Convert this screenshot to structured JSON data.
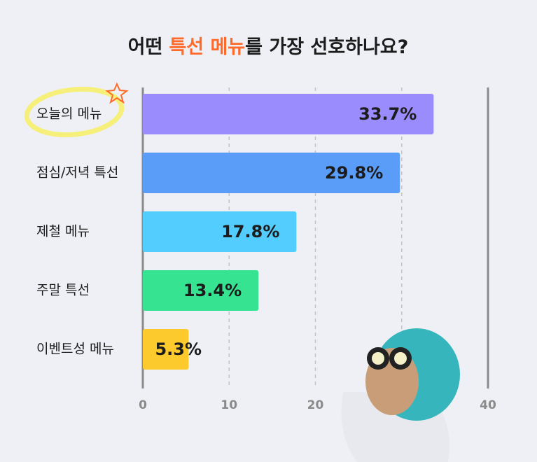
{
  "chart_data": {
    "type": "hbar",
    "title_parts": [
      "어떤",
      "특선 메뉴",
      "를 가장 선호하나요?"
    ],
    "categories": [
      "오늘의 메뉴",
      "점심/저녁 특선",
      "제철 메뉴",
      "주말 특선",
      "이벤트성 메뉴"
    ],
    "values": [
      33.7,
      29.8,
      17.8,
      13.4,
      5.3
    ],
    "value_labels": [
      "33.7%",
      "29.8%",
      "17.8%",
      "13.4%",
      "5.3%"
    ],
    "colors": [
      "#9b8cfd",
      "#5a9df8",
      "#52cdfd",
      "#35e391",
      "#fdca2e"
    ],
    "xlim": [
      0,
      40
    ],
    "xticks": [
      0,
      10,
      20,
      {
        "value": 30,
        "label": null
      },
      40
    ],
    "grid": true
  }
}
